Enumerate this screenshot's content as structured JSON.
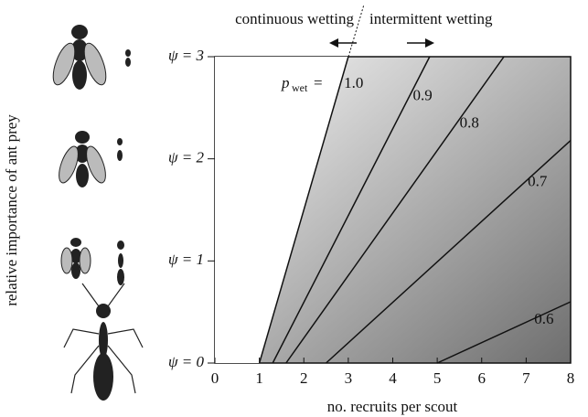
{
  "chart_data": {
    "type": "line",
    "x_label": "no. recruits per scout",
    "y_label": "relative importance of ant prey",
    "annotations": {
      "left": "continuous wetting",
      "right": "intermittent wetting",
      "p": "p",
      "sub": "wet",
      "eq": "="
    },
    "xlim": [
      0,
      8
    ],
    "ylim": [
      0,
      3
    ],
    "xticks": [
      0,
      1,
      2,
      3,
      4,
      5,
      6,
      7,
      8
    ],
    "yticks": [
      {
        "value": 0,
        "label": "ψ = 0"
      },
      {
        "value": 1,
        "label": "ψ = 1"
      },
      {
        "value": 2,
        "label": "ψ = 2"
      },
      {
        "value": 3,
        "label": "ψ = 3"
      }
    ],
    "color": "#111111",
    "series": [
      {
        "name": "1.0",
        "x": [
          1.0,
          3.0
        ],
        "y": [
          0,
          3
        ]
      },
      {
        "name": "0.9",
        "x": [
          1.3,
          4.83
        ],
        "y": [
          0,
          3
        ]
      },
      {
        "name": "0.8",
        "x": [
          1.6,
          6.5
        ],
        "y": [
          0,
          3
        ]
      },
      {
        "name": "0.7",
        "x": [
          2.5,
          8
        ],
        "y": [
          0,
          2.18
        ]
      },
      {
        "name": "0.6",
        "x": [
          5.0,
          8
        ],
        "y": [
          0,
          0.6
        ]
      }
    ]
  }
}
